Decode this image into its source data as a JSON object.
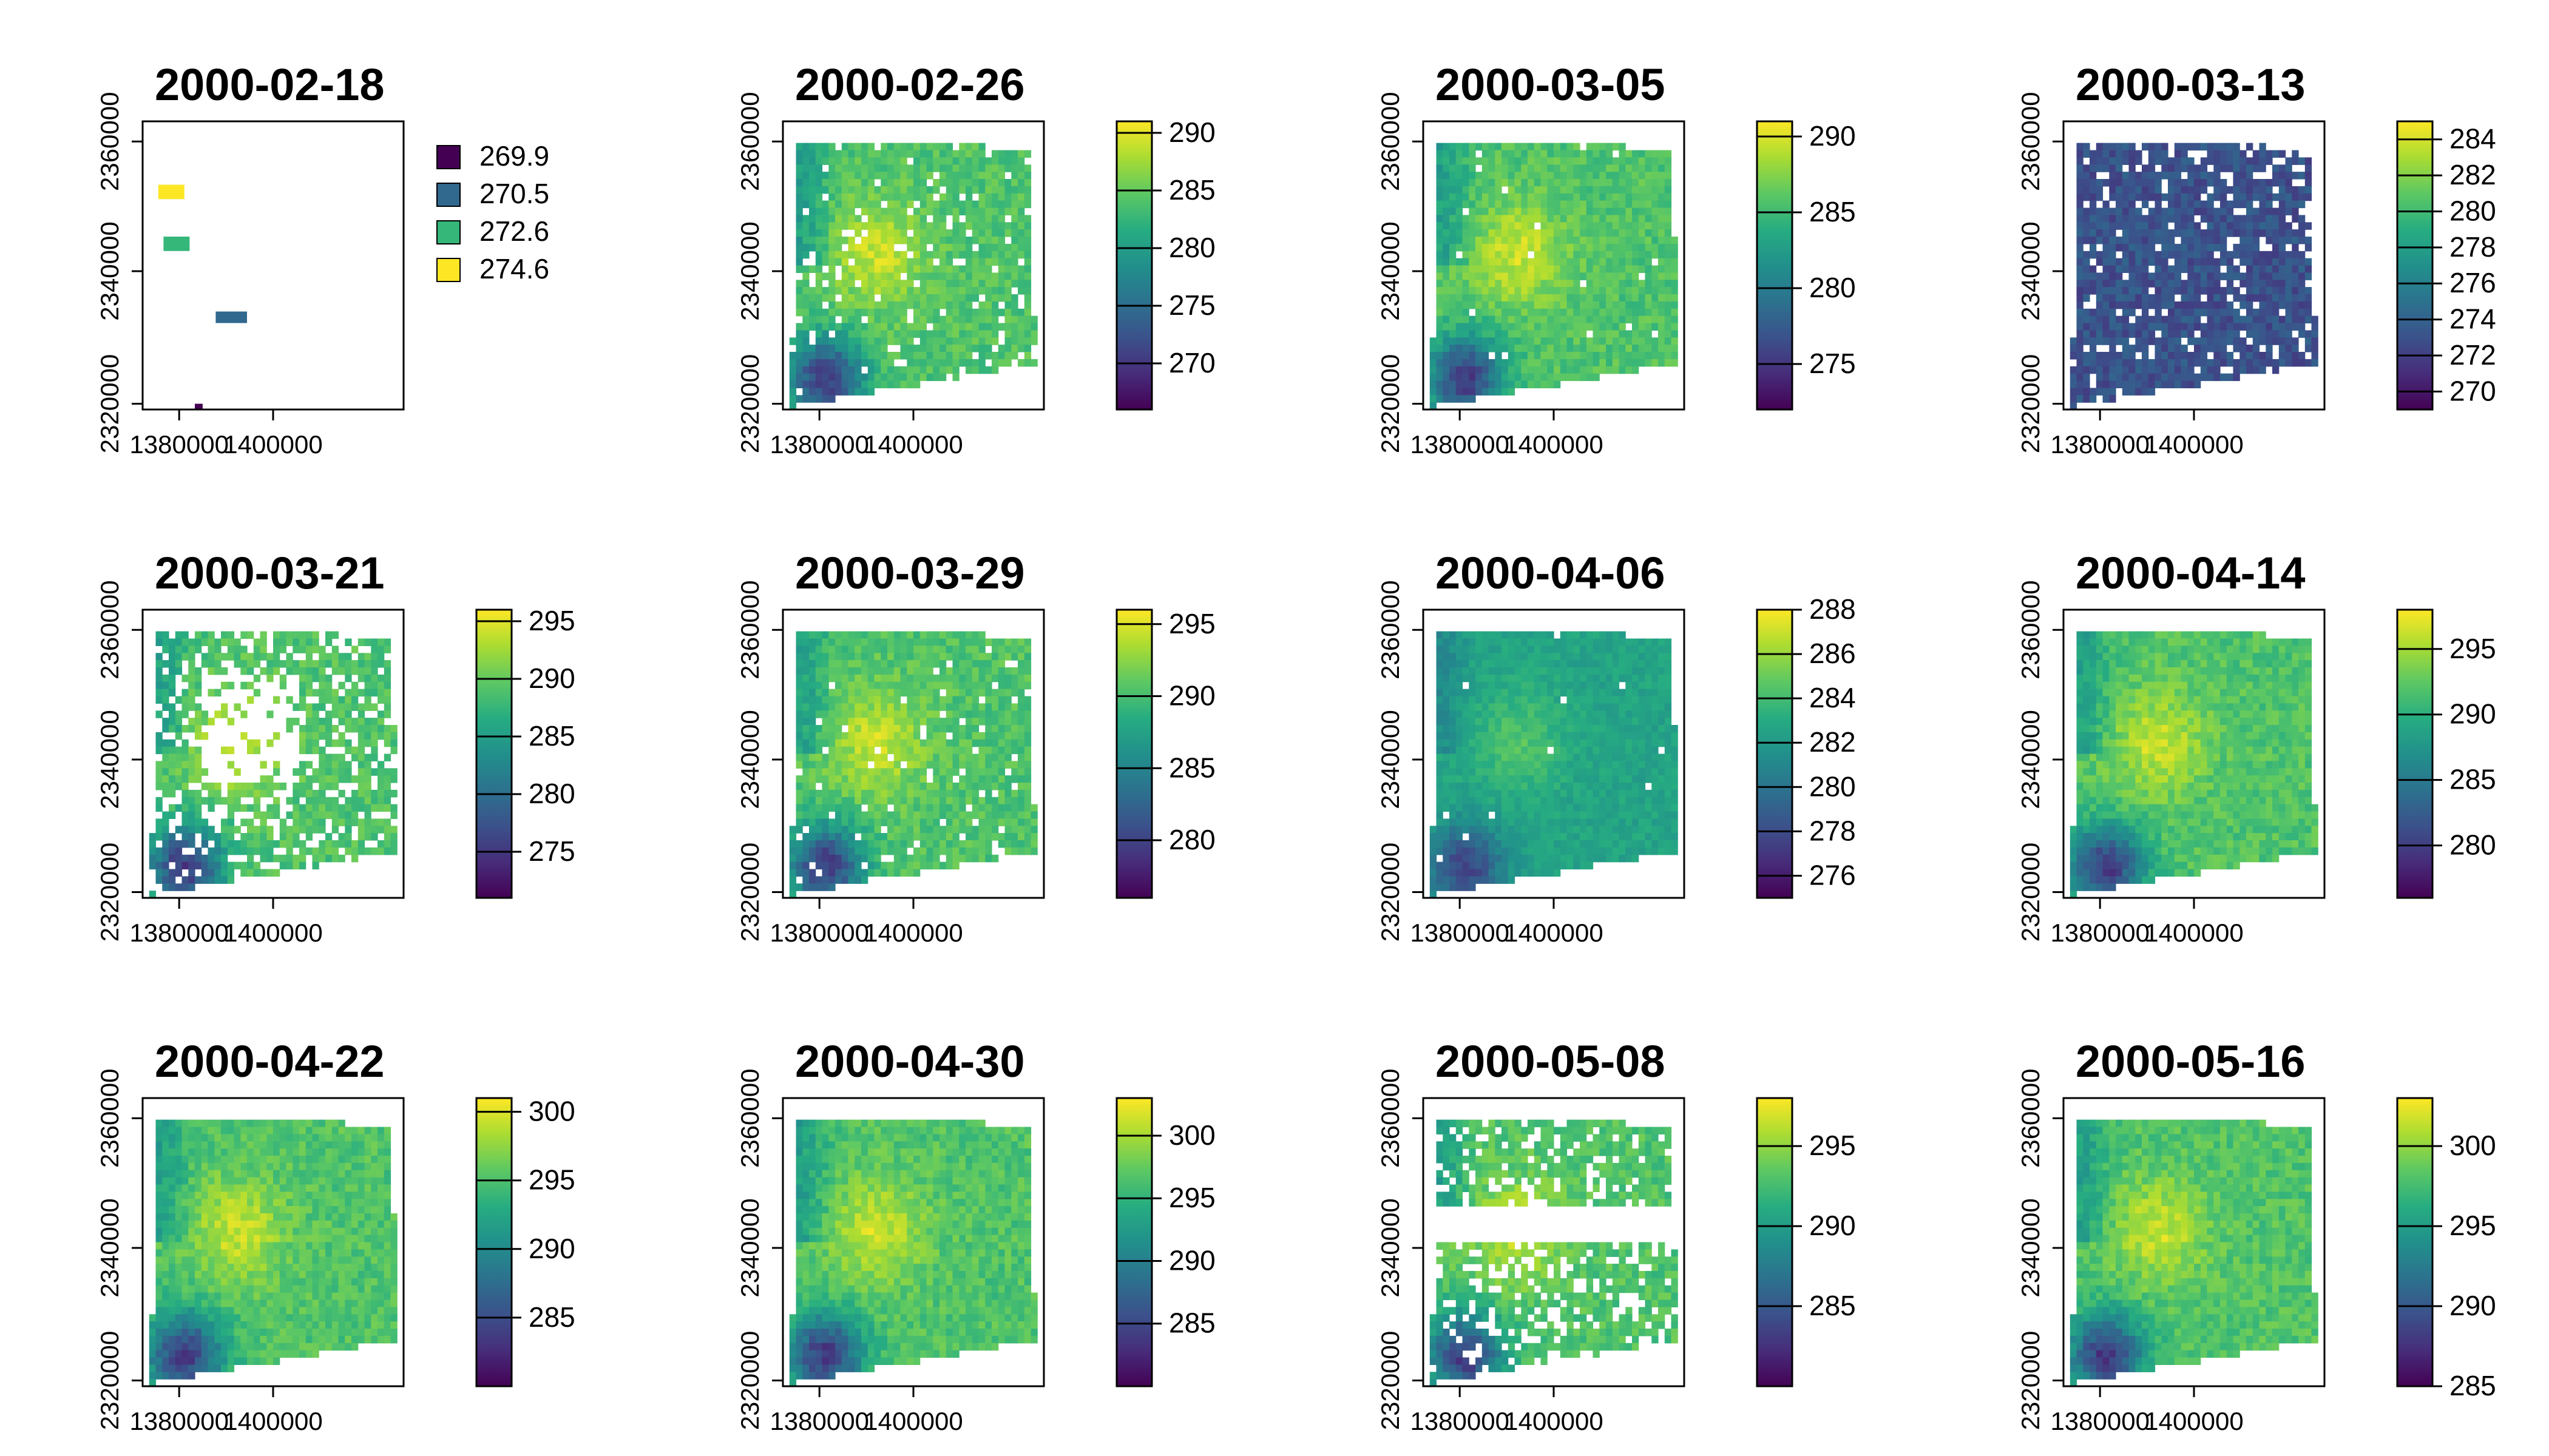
{
  "figure": {
    "type": "raster-map-panels",
    "colormap": "viridis",
    "colormap_colors": [
      "#440154",
      "#472D7B",
      "#3B528B",
      "#2C728E",
      "#21908C",
      "#27AD81",
      "#5DC863",
      "#AADC32",
      "#FDE725"
    ],
    "axis_x_ticks": [
      "1380000",
      "1400000"
    ],
    "axis_y_ticks": [
      "2320000",
      "2340000",
      "2360000"
    ]
  },
  "panels": [
    {
      "title": "2000-02-18",
      "legend_type": "categorical",
      "legend_labels": [
        "269.9",
        "270.5",
        "272.6",
        "274.6"
      ],
      "legend_colors": [
        "#440154",
        "#31688E",
        "#35B779",
        "#FDE725"
      ]
    },
    {
      "title": "2000-02-26",
      "legend_type": "continuous",
      "range": [
        266,
        291
      ],
      "ticks": [
        "270",
        "275",
        "280",
        "285",
        "290"
      ]
    },
    {
      "title": "2000-03-05",
      "legend_type": "continuous",
      "range": [
        272,
        291
      ],
      "ticks": [
        "275",
        "280",
        "285",
        "290"
      ]
    },
    {
      "title": "2000-03-13",
      "legend_type": "continuous",
      "range": [
        269,
        285
      ],
      "ticks": [
        "270",
        "272",
        "274",
        "276",
        "278",
        "280",
        "282",
        "284"
      ]
    },
    {
      "title": "2000-03-21",
      "legend_type": "continuous",
      "range": [
        271,
        296
      ],
      "ticks": [
        "275",
        "280",
        "285",
        "290",
        "295"
      ]
    },
    {
      "title": "2000-03-29",
      "legend_type": "continuous",
      "range": [
        276,
        296
      ],
      "ticks": [
        "280",
        "285",
        "290",
        "295"
      ]
    },
    {
      "title": "2000-04-06",
      "legend_type": "continuous",
      "range": [
        275,
        288
      ],
      "ticks": [
        "276",
        "278",
        "280",
        "282",
        "284",
        "286",
        "288"
      ]
    },
    {
      "title": "2000-04-14",
      "legend_type": "continuous",
      "range": [
        276,
        298
      ],
      "ticks": [
        "280",
        "285",
        "290",
        "295"
      ]
    },
    {
      "title": "2000-04-22",
      "legend_type": "continuous",
      "range": [
        280,
        301
      ],
      "ticks": [
        "285",
        "290",
        "295",
        "300"
      ]
    },
    {
      "title": "2000-04-30",
      "legend_type": "continuous",
      "range": [
        280,
        303
      ],
      "ticks": [
        "285",
        "290",
        "295",
        "300"
      ]
    },
    {
      "title": "2000-05-08",
      "legend_type": "continuous",
      "range": [
        280,
        298
      ],
      "ticks": [
        "285",
        "290",
        "295"
      ]
    },
    {
      "title": "2000-05-16",
      "legend_type": "continuous",
      "range": [
        285,
        303
      ],
      "ticks": [
        "285",
        "290",
        "295",
        "300"
      ]
    }
  ]
}
